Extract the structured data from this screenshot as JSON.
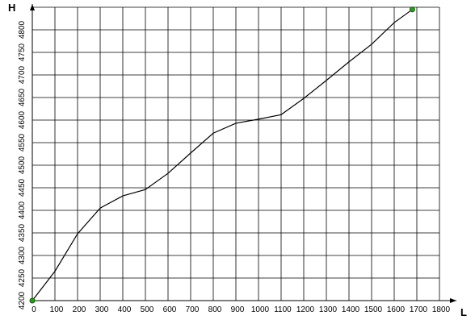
{
  "chart_data": {
    "type": "line",
    "x_label": "L",
    "y_label": "H",
    "x": [
      0,
      100,
      200,
      300,
      400,
      500,
      600,
      700,
      800,
      900,
      1000,
      1100,
      1200,
      1300,
      1400,
      1500,
      1600,
      1680
    ],
    "series": [
      {
        "color": "#000000",
        "marker_color": "#2e9b1e",
        "values": [
          4200,
          4265,
          4348,
          4405,
          4432,
          4446,
          4482,
          4527,
          4571,
          4593,
          4602,
          4612,
          4648,
          4688,
          4729,
          4768,
          4816,
          4845
        ]
      }
    ],
    "xlim": [
      0,
      1800
    ],
    "ylim": [
      4200,
      4850
    ],
    "xticks": [
      0,
      100,
      200,
      300,
      400,
      500,
      600,
      700,
      800,
      900,
      1000,
      1100,
      1200,
      1300,
      1400,
      1500,
      1600,
      1700,
      1800
    ],
    "yticks": [
      4200,
      4250,
      4300,
      4350,
      4400,
      4450,
      4500,
      4550,
      4600,
      4650,
      4700,
      4750,
      4800
    ],
    "grid": true
  }
}
